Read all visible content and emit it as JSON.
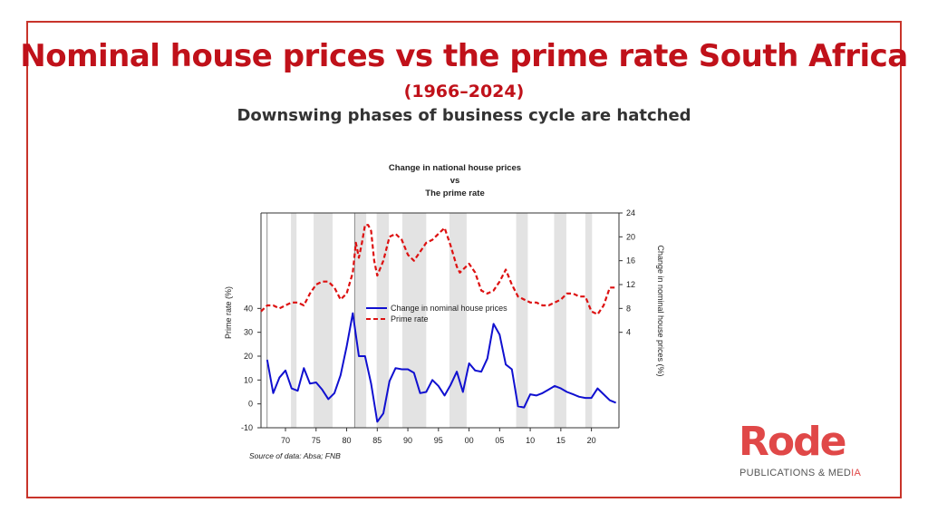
{
  "slide": {
    "title": "Nominal house prices vs the prime rate South Africa",
    "years": "(1966–2024)",
    "subtitle": "Downswing phases of business cycle are hatched"
  },
  "logo": {
    "word": "Rode",
    "tag_main": "PUBLICATIONS & MED",
    "tag_accent": "IA",
    "brand_color": "#e04848"
  },
  "colors": {
    "frame": "#c8342a",
    "title": "#c0111a",
    "house_series": "#1010d0",
    "prime_series": "#dd1111",
    "hatch": "#e3e3e3"
  },
  "chart_data": {
    "type": "line",
    "title_lines": [
      "Change in national house prices",
      "vs",
      "The prime rate"
    ],
    "source": "Source of data: Absa; FNB",
    "xlim": [
      1966,
      2024.5
    ],
    "x_ticks": [
      1970,
      1975,
      1980,
      1985,
      1990,
      1995,
      2000,
      2005,
      2010,
      2015,
      2020
    ],
    "x_tick_labels": [
      "70",
      "75",
      "80",
      "85",
      "90",
      "95",
      "00",
      "05",
      "10",
      "15",
      "20"
    ],
    "left_axis": {
      "label": "Prime rate (%)",
      "ticks": [
        -10,
        0,
        10,
        20,
        30,
        40
      ],
      "range": [
        -10,
        80
      ]
    },
    "right_axis": {
      "label": "Change in nominal house prices (%)",
      "ticks": [
        4,
        8,
        12,
        16,
        20,
        24
      ],
      "range": [
        -12,
        24
      ]
    },
    "downswing_periods": [
      [
        1970.9,
        1971.8
      ],
      [
        1974.6,
        1977.7
      ],
      [
        1981.3,
        1983.2
      ],
      [
        1984.9,
        1986.9
      ],
      [
        1989.1,
        1993.0
      ],
      [
        1996.8,
        1999.6
      ],
      [
        2007.7,
        2009.6
      ],
      [
        2013.9,
        2015.9
      ],
      [
        2019.0,
        2020.1
      ]
    ],
    "reference_lines": [
      1967,
      1981.3
    ],
    "legend": [
      "Change in nominal house prices",
      "Prime rate"
    ],
    "series": [
      {
        "name": "Change in nominal house prices",
        "axis": "left",
        "style": "solid",
        "x": [
          1967,
          1968,
          1969,
          1970,
          1971,
          1972,
          1973,
          1974,
          1975,
          1976,
          1977,
          1978,
          1979,
          1980,
          1981,
          1982,
          1983,
          1984,
          1985,
          1986,
          1987,
          1988,
          1989,
          1990,
          1991,
          1992,
          1993,
          1994,
          1995,
          1996,
          1997,
          1998,
          1999,
          2000,
          2001,
          2002,
          2003,
          2004,
          2005,
          2006,
          2007,
          2008,
          2009,
          2010,
          2011,
          2012,
          2013,
          2014,
          2015,
          2016,
          2017,
          2018,
          2019,
          2020,
          2021,
          2022,
          2023,
          2024
        ],
        "y": [
          18.5,
          4.5,
          11,
          14,
          6.5,
          5.5,
          15,
          8.5,
          9,
          6,
          2,
          4.5,
          12,
          24,
          38,
          20,
          20,
          8.5,
          -7.5,
          -4,
          9.5,
          15,
          14.5,
          14.5,
          13,
          4.5,
          5,
          10,
          7.5,
          3.5,
          8,
          13.5,
          5,
          17,
          14,
          13.5,
          19,
          33.5,
          29,
          16.5,
          14.5,
          -1,
          -1.5,
          4,
          3.5,
          4.5,
          6,
          7.5,
          6.5,
          5,
          4,
          3,
          2.5,
          2.5,
          6.5,
          4,
          1.5,
          0.5
        ]
      },
      {
        "name": "Prime rate",
        "axis": "right",
        "style": "dashed",
        "x": [
          1966,
          1967,
          1968,
          1969,
          1970,
          1971,
          1972,
          1973,
          1974,
          1975,
          1976,
          1977,
          1978,
          1979,
          1980,
          1981,
          1981.5,
          1982,
          1982.5,
          1983,
          1983.5,
          1984,
          1984.5,
          1985,
          1986,
          1987,
          1988,
          1989,
          1990,
          1991,
          1992,
          1993,
          1994,
          1995,
          1996,
          1997,
          1998,
          1998.5,
          1999,
          2000,
          2001,
          2002,
          2003,
          2004,
          2005,
          2006,
          2007,
          2008,
          2009,
          2010,
          2011,
          2012,
          2013,
          2014,
          2015,
          2016,
          2017,
          2018,
          2019,
          2020,
          2021,
          2022,
          2023,
          2024
        ],
        "y": [
          7.5,
          8.5,
          8.5,
          8,
          8.5,
          9,
          9,
          8.5,
          10.5,
          12,
          12.5,
          12.5,
          11.5,
          9.5,
          10.5,
          14,
          19,
          16.5,
          19,
          22,
          22,
          21,
          16,
          13.5,
          16,
          20,
          20.5,
          19.5,
          17,
          16,
          17.5,
          19,
          19.5,
          20.5,
          21.5,
          18.5,
          15,
          14,
          14.5,
          15.5,
          14,
          11,
          10.5,
          11,
          12.5,
          14.5,
          12,
          10,
          9.5,
          9,
          9,
          8.5,
          8.5,
          9,
          9.5,
          10.5,
          10.5,
          10,
          10,
          7.5,
          7,
          8.5,
          11.5,
          11.5
        ]
      }
    ]
  }
}
